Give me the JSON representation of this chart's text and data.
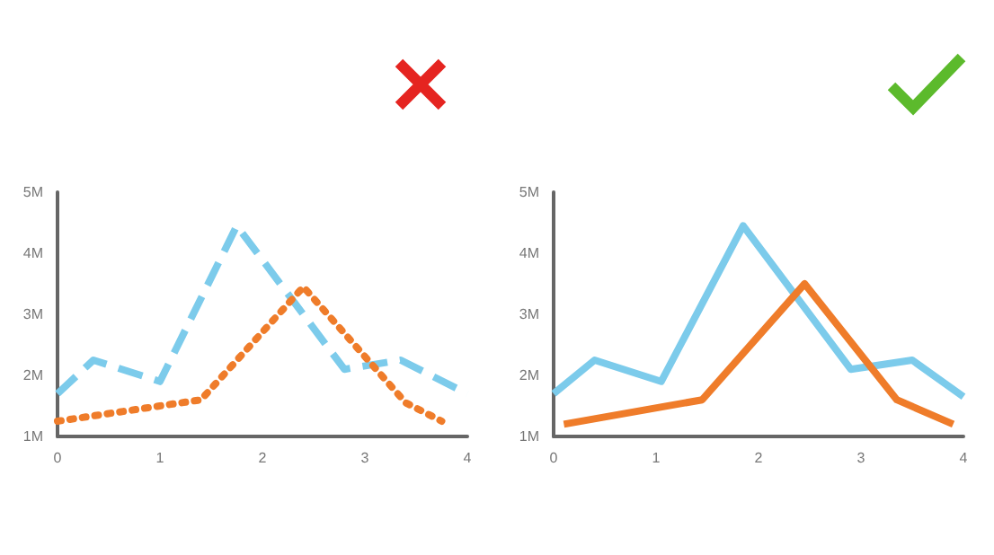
{
  "chart_data": [
    {
      "type": "line",
      "xlim": [
        0,
        4
      ],
      "xticks": [
        0,
        1,
        2,
        3,
        4
      ],
      "ylim": [
        1,
        5
      ],
      "yticks": [
        {
          "value": 1,
          "label": "1M"
        },
        {
          "value": 2,
          "label": "2M"
        },
        {
          "value": 3,
          "label": "3M"
        },
        {
          "value": 4,
          "label": "4M"
        },
        {
          "value": 5,
          "label": "5M"
        }
      ],
      "grid": false,
      "marker": "none",
      "series": [
        {
          "color": "#7ccbeb",
          "line_style": "dashed",
          "x": [
            0,
            0.35,
            1,
            1.75,
            2.8,
            3.35,
            4
          ],
          "values": [
            1.7,
            2.25,
            1.9,
            4.45,
            2.1,
            2.25,
            1.7
          ]
        },
        {
          "color": "#ef7c2a",
          "line_style": "dotted",
          "x": [
            0,
            1,
            1.4,
            2.4,
            3.4,
            3.75
          ],
          "values": [
            1.25,
            1.5,
            1.6,
            3.45,
            1.55,
            1.25
          ]
        }
      ]
    },
    {
      "type": "line",
      "xlim": [
        0,
        4
      ],
      "xticks": [
        0,
        1,
        2,
        3,
        4
      ],
      "ylim": [
        1,
        5
      ],
      "yticks": [
        {
          "value": 1,
          "label": "1M"
        },
        {
          "value": 2,
          "label": "2M"
        },
        {
          "value": 3,
          "label": "3M"
        },
        {
          "value": 4,
          "label": "4M"
        },
        {
          "value": 5,
          "label": "5M"
        }
      ],
      "grid": false,
      "marker": "none",
      "series": [
        {
          "color": "#7ccbeb",
          "line_style": "solid",
          "x": [
            0,
            0.4,
            1.05,
            1.85,
            2.9,
            3.5,
            4
          ],
          "values": [
            1.7,
            2.25,
            1.9,
            4.45,
            2.1,
            2.25,
            1.65
          ]
        },
        {
          "color": "#ef7c2a",
          "line_style": "solid",
          "x": [
            0.1,
            1.45,
            2.45,
            3.35,
            3.9
          ],
          "values": [
            1.2,
            1.6,
            3.5,
            1.6,
            1.2
          ]
        }
      ]
    }
  ]
}
